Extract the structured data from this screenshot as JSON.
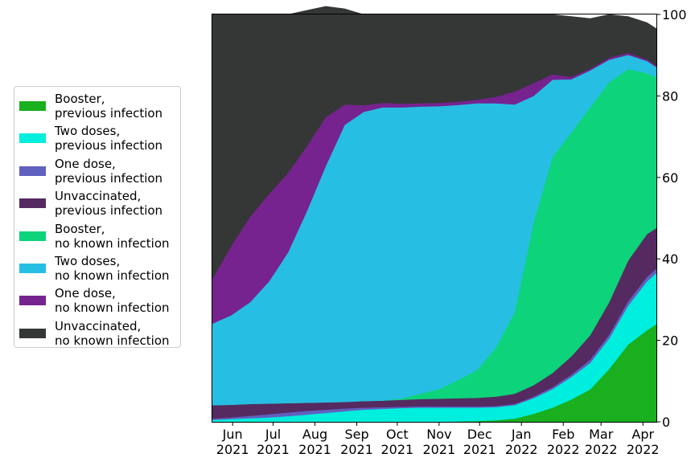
{
  "chart_data": {
    "type": "area",
    "stacked": true,
    "ylim": [
      0,
      100
    ],
    "y_ticks": [
      0,
      20,
      40,
      60,
      80,
      100
    ],
    "y_axis_side": "right",
    "x_ticks": [
      {
        "x": "2021-06-01",
        "label": "Jun\n2021"
      },
      {
        "x": "2021-07-01",
        "label": "Jul\n2021"
      },
      {
        "x": "2021-08-01",
        "label": "Aug\n2021"
      },
      {
        "x": "2021-09-01",
        "label": "Sep\n2021"
      },
      {
        "x": "2021-10-01",
        "label": "Oct\n2021"
      },
      {
        "x": "2021-11-01",
        "label": "Nov\n2021"
      },
      {
        "x": "2021-12-01",
        "label": "Dec\n2021"
      },
      {
        "x": "2022-01-01",
        "label": "Jan\n2022"
      },
      {
        "x": "2022-02-01",
        "label": "Feb\n2022"
      },
      {
        "x": "2022-03-01",
        "label": "Mar\n2022"
      },
      {
        "x": "2022-04-01",
        "label": "Apr\n2022"
      }
    ],
    "xlim": [
      "2021-05-17",
      "2022-04-11"
    ],
    "x": [
      "2021-05-17",
      "2021-05-31",
      "2021-06-14",
      "2021-06-28",
      "2021-07-12",
      "2021-07-26",
      "2021-08-09",
      "2021-08-23",
      "2021-09-06",
      "2021-09-20",
      "2021-10-04",
      "2021-10-18",
      "2021-11-01",
      "2021-11-15",
      "2021-11-29",
      "2021-12-13",
      "2021-12-27",
      "2022-01-10",
      "2022-01-24",
      "2022-02-07",
      "2022-02-21",
      "2022-03-07",
      "2022-03-21",
      "2022-04-04",
      "2022-04-11"
    ],
    "series": [
      {
        "name": "Booster,\nprevious infection",
        "color": "#1aaf1f",
        "values": [
          0,
          0,
          0,
          0,
          0,
          0,
          0,
          0,
          0,
          0,
          0,
          0,
          0,
          0.1,
          0.2,
          0.4,
          0.8,
          2,
          3.5,
          5.5,
          8,
          13,
          19,
          22.5,
          24
        ]
      },
      {
        "name": "Two doses,\nprevious infection",
        "color": "#00eedd",
        "values": [
          0.5,
          0.7,
          0.9,
          1.1,
          1.4,
          1.8,
          2.2,
          2.6,
          3,
          3.2,
          3.4,
          3.5,
          3.5,
          3.4,
          3.3,
          3.2,
          3.3,
          3.8,
          4.5,
          5.5,
          6.5,
          7.5,
          9.5,
          12,
          12.5
        ]
      },
      {
        "name": "One dose,\nprevious infection",
        "color": "#6060c0",
        "values": [
          0.3,
          0.4,
          0.6,
          0.8,
          0.9,
          0.9,
          0.8,
          0.7,
          0.5,
          0.4,
          0.3,
          0.3,
          0.3,
          0.3,
          0.3,
          0.3,
          0.3,
          0.4,
          0.5,
          0.6,
          0.8,
          0.9,
          1.1,
          1.1,
          1.1
        ]
      },
      {
        "name": "Unvaccinated,\nprevious infection",
        "color": "#552a60",
        "values": [
          3.3,
          3.1,
          2.9,
          2.6,
          2.3,
          2,
          1.8,
          1.6,
          1.6,
          1.6,
          1.7,
          1.8,
          1.9,
          2,
          2.1,
          2.3,
          2.5,
          2.8,
          3.5,
          4.5,
          6,
          8,
          10,
          10.5,
          10
        ]
      },
      {
        "name": "Booster,\nno known infection",
        "color": "#0dd37a",
        "values": [
          0,
          0,
          0,
          0,
          0,
          0,
          0,
          0,
          0,
          0,
          0.3,
          1.3,
          2.3,
          4.5,
          6.8,
          12,
          20,
          40,
          53,
          55,
          56,
          54,
          47,
          39.5,
          37
        ]
      },
      {
        "name": "Two doses,\nno known infection",
        "color": "#27bee3",
        "values": [
          20,
          22,
          25,
          30,
          37,
          47,
          58,
          68,
          71,
          72,
          71.5,
          70.5,
          69.5,
          67.5,
          65.5,
          60,
          51,
          31,
          19,
          13,
          9,
          5.5,
          3.5,
          3,
          2.5
        ]
      },
      {
        "name": "One dose,\nno known infection",
        "color": "#76238f",
        "values": [
          11,
          17,
          21,
          21.5,
          19.5,
          16,
          12,
          5,
          1.6,
          1.1,
          0.9,
          0.8,
          0.8,
          0.8,
          0.9,
          1.6,
          3.2,
          3.2,
          1.3,
          0.6,
          0.4,
          0.5,
          0.5,
          0.4,
          0.4
        ]
      },
      {
        "name": "Unvaccinated,\nno known infection",
        "color": "#353737",
        "values": [
          64.9,
          56.8,
          49.6,
          44,
          38.9,
          33.3,
          27.2,
          23.5,
          22.3,
          21.7,
          21.9,
          21.8,
          21.7,
          21.4,
          20.9,
          20.2,
          18.9,
          16.8,
          14.7,
          14.8,
          12.3,
          10.6,
          8.9,
          9,
          9
        ]
      }
    ]
  }
}
